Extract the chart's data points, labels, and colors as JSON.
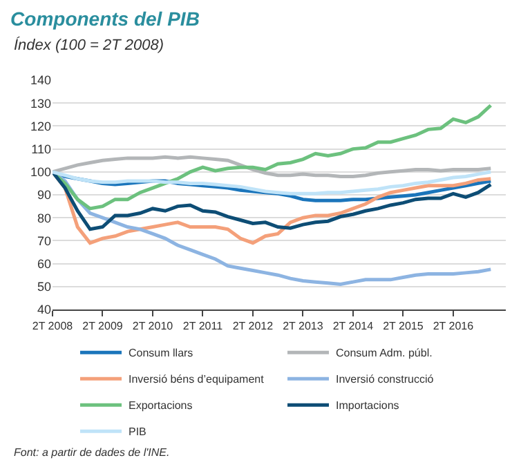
{
  "chart_data": {
    "type": "line",
    "title": "Components del PIB",
    "subtitle": "Índex (100 = 2T 2008)",
    "categories": [
      "2T 2008",
      null,
      null,
      null,
      "2T 2009",
      null,
      null,
      null,
      "2T 2010",
      null,
      null,
      null,
      "2T 2011",
      null,
      null,
      null,
      "2T 2012",
      null,
      null,
      null,
      "2T 2013",
      null,
      null,
      null,
      "2T 2014",
      null,
      null,
      null,
      "2T 2015",
      null,
      null,
      null,
      "2T 2016",
      null,
      null,
      null
    ],
    "series": [
      {
        "name": "Consum llars",
        "color": "#1b75bb",
        "values": [
          100,
          98,
          97,
          96,
          95,
          94.5,
          95,
          95.5,
          96,
          96,
          95,
          94.5,
          94,
          93.5,
          93,
          92,
          91.5,
          91,
          90.5,
          89.5,
          88,
          87.5,
          87.5,
          87.5,
          88,
          88,
          88.5,
          89,
          89.5,
          90,
          91,
          92,
          93,
          94,
          95,
          96
        ]
      },
      {
        "name": "Consum Adm. públ.",
        "color": "#b3b6b8",
        "values": [
          100,
          101.5,
          103,
          104,
          105,
          105.5,
          106,
          106,
          106,
          106.5,
          106,
          106.5,
          106,
          105.5,
          105,
          103,
          101,
          99.5,
          98.5,
          98.5,
          99,
          98.5,
          98.5,
          98,
          98,
          98.5,
          99.5,
          100,
          100.5,
          101,
          101,
          100.5,
          101,
          101,
          101,
          101.5
        ]
      },
      {
        "name": "Inversió béns d’equipament",
        "color": "#f4a07a",
        "values": [
          100,
          93,
          76,
          69,
          71,
          72,
          74,
          75,
          76,
          77,
          78,
          76,
          76,
          76,
          75,
          71,
          69,
          72,
          73,
          78,
          80,
          81,
          81,
          82,
          84,
          86,
          89,
          91,
          92,
          93,
          94,
          94,
          94,
          95,
          96.5,
          97
        ]
      },
      {
        "name": "Inversió construcció",
        "color": "#8db4e2",
        "values": [
          100,
          96,
          88,
          82,
          80,
          78,
          76,
          75,
          73,
          71,
          68,
          66,
          64,
          62,
          59,
          58,
          57,
          56,
          55,
          53.5,
          52.5,
          52,
          51.5,
          51,
          52,
          53,
          53,
          53,
          54,
          55,
          55.5,
          55.5,
          55.5,
          56,
          56.5,
          57.5
        ]
      },
      {
        "name": "Exportacions",
        "color": "#6cc17e",
        "values": [
          100,
          95,
          88,
          84,
          85,
          88,
          88,
          91,
          93,
          95,
          97,
          100,
          102,
          100.5,
          101.5,
          102,
          102,
          101,
          103.5,
          104,
          105.5,
          108,
          107,
          108,
          110,
          110.5,
          113,
          113,
          114.5,
          116,
          118.5,
          119,
          123,
          121.5,
          124,
          129
        ]
      },
      {
        "name": "Importacions",
        "color": "#0d4d75",
        "values": [
          100,
          93,
          83,
          75,
          76,
          81,
          81,
          82,
          84,
          83,
          85,
          85.5,
          83,
          82.5,
          80.5,
          79,
          77.5,
          78,
          76,
          75.5,
          77,
          78,
          78.5,
          80.5,
          81.5,
          83,
          84,
          85.5,
          86.5,
          88,
          88.5,
          88.5,
          90.5,
          89,
          91,
          94.5
        ]
      },
      {
        "name": "PIB",
        "color": "#bfe3f8",
        "values": [
          100,
          98.5,
          97,
          96,
          95.5,
          95.5,
          96,
          96,
          96,
          95.5,
          95.5,
          95,
          95,
          94.5,
          94,
          93.5,
          92.5,
          91.5,
          91,
          90.5,
          90.5,
          90.5,
          91,
          91,
          91.5,
          92,
          92.5,
          93.5,
          94,
          95,
          95.5,
          96.5,
          97.5,
          98,
          99,
          100
        ]
      }
    ],
    "ylim": [
      40,
      140
    ],
    "yticks": [
      40,
      50,
      60,
      70,
      80,
      90,
      100,
      110,
      120,
      130,
      140
    ],
    "grid": "y",
    "legend": "bottom",
    "marker": "none",
    "line_style": "solid",
    "annotations": [
      "Font: a partir de dades de l'INE."
    ]
  }
}
